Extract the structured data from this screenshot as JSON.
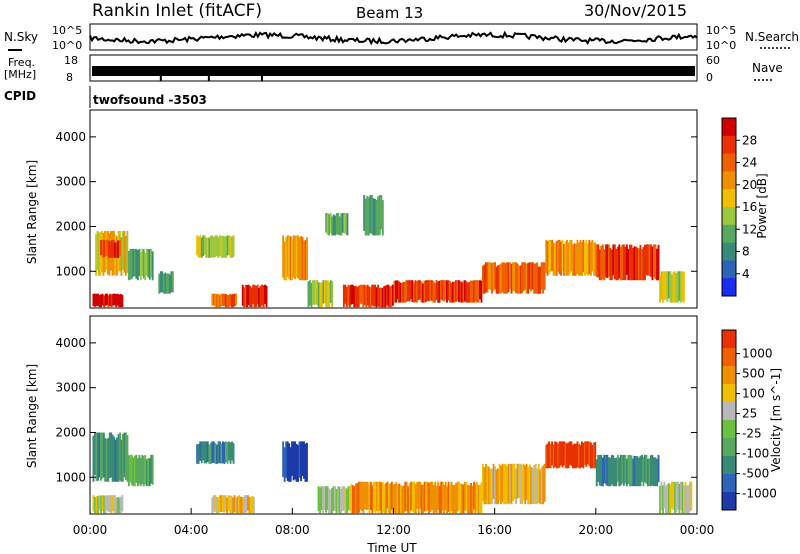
{
  "header": {
    "station": "Rankin Inlet (fitACF)",
    "beam": "Beam 13",
    "date": "30/Nov/2015"
  },
  "top_panels": {
    "nsky": {
      "label": "N.Sky",
      "tick_top": "10^5",
      "tick_bottom": "10^0"
    },
    "nsearch": {
      "label": "N.Search",
      "tick_top": "10^5",
      "tick_bottom": "10^0"
    },
    "freq": {
      "label_line1": "Freq.",
      "label_line2": "[MHz]",
      "tick_top": "18",
      "tick_bottom": "8"
    },
    "nave": {
      "label": "Nave",
      "tick_top": "60",
      "tick_bottom": "0"
    },
    "cpid": {
      "label": "CPID",
      "program": "twofsound -3503"
    }
  },
  "chart_data": [
    {
      "type": "heatmap",
      "name": "power-panel",
      "ylabel": "Slant Range [km]",
      "xlabel": "",
      "y_ticks": [
        1000,
        2000,
        3000,
        4000
      ],
      "ylim": [
        180,
        4600
      ],
      "colorbar": {
        "label": "Power [dB]",
        "ticks": [
          4,
          8,
          12,
          16,
          20,
          24,
          28
        ],
        "range": [
          0,
          32
        ],
        "colors": [
          "#1a2cf2",
          "#2e64b8",
          "#3a8a78",
          "#58a860",
          "#9cc840",
          "#f0c000",
          "#f09000",
          "#f06000",
          "#e83000",
          "#d00000"
        ]
      },
      "cells": [
        {
          "t0": 0.1,
          "t1": 1.3,
          "r0": 200,
          "r1": 500,
          "v": 29
        },
        {
          "t0": 0.2,
          "t1": 1.5,
          "r0": 900,
          "r1": 1900,
          "v": 18
        },
        {
          "t0": 0.4,
          "t1": 1.2,
          "r0": 1300,
          "r1": 1700,
          "v": 26
        },
        {
          "t0": 1.5,
          "t1": 2.5,
          "r0": 800,
          "r1": 1500,
          "v": 12
        },
        {
          "t0": 2.7,
          "t1": 3.3,
          "r0": 500,
          "r1": 1000,
          "v": 7
        },
        {
          "t0": 4.2,
          "t1": 5.7,
          "r0": 1300,
          "r1": 1800,
          "v": 14
        },
        {
          "t0": 4.8,
          "t1": 5.8,
          "r0": 200,
          "r1": 500,
          "v": 24
        },
        {
          "t0": 6.0,
          "t1": 7.0,
          "r0": 200,
          "r1": 700,
          "v": 26
        },
        {
          "t0": 7.6,
          "t1": 8.6,
          "r0": 800,
          "r1": 1800,
          "v": 22
        },
        {
          "t0": 8.6,
          "t1": 9.6,
          "r0": 200,
          "r1": 800,
          "v": 15
        },
        {
          "t0": 9.3,
          "t1": 10.2,
          "r0": 1800,
          "r1": 2300,
          "v": 12
        },
        {
          "t0": 10.0,
          "t1": 12.0,
          "r0": 200,
          "r1": 700,
          "v": 28
        },
        {
          "t0": 12.0,
          "t1": 15.5,
          "r0": 300,
          "r1": 800,
          "v": 26
        },
        {
          "t0": 15.5,
          "t1": 18.0,
          "r0": 500,
          "r1": 1200,
          "v": 25
        },
        {
          "t0": 18.0,
          "t1": 20.0,
          "r0": 900,
          "r1": 1700,
          "v": 22
        },
        {
          "t0": 20.0,
          "t1": 22.5,
          "r0": 800,
          "r1": 1600,
          "v": 26
        },
        {
          "t0": 22.5,
          "t1": 23.5,
          "r0": 300,
          "r1": 1000,
          "v": 14
        },
        {
          "t0": 10.8,
          "t1": 11.6,
          "r0": 1800,
          "r1": 2700,
          "v": 10
        }
      ]
    },
    {
      "type": "heatmap",
      "name": "velocity-panel",
      "ylabel": "Slant Range [km]",
      "xlabel": "Time UT",
      "x_ticks": [
        "00:00",
        "04:00",
        "08:00",
        "12:00",
        "16:00",
        "20:00",
        "00:00"
      ],
      "y_ticks": [
        1000,
        2000,
        3000,
        4000
      ],
      "ylim": [
        180,
        4600
      ],
      "colorbar": {
        "label": "Velocity [m s^-1]",
        "ticks": [
          "1000",
          "500",
          "100",
          "25",
          "-25",
          "-100",
          "-500",
          "-1000"
        ],
        "colors": [
          "#1c3aa8",
          "#2e64b8",
          "#3a8a78",
          "#58a860",
          "#6cc040",
          "#b8b8b8",
          "#f0c000",
          "#f09000",
          "#f06000",
          "#e83000"
        ]
      },
      "cells": [
        {
          "t0": 0.1,
          "t1": 1.5,
          "r0": 900,
          "r1": 2000,
          "v": 2
        },
        {
          "t0": 0.1,
          "t1": 1.3,
          "r0": 200,
          "r1": 600,
          "v": 5
        },
        {
          "t0": 1.5,
          "t1": 2.5,
          "r0": 800,
          "r1": 1500,
          "v": 3
        },
        {
          "t0": 4.2,
          "t1": 5.7,
          "r0": 1300,
          "r1": 1800,
          "v": 2
        },
        {
          "t0": 4.8,
          "t1": 6.5,
          "r0": 200,
          "r1": 600,
          "v": 6
        },
        {
          "t0": 7.6,
          "t1": 8.6,
          "r0": 900,
          "r1": 1800,
          "v": 0
        },
        {
          "t0": 9.0,
          "t1": 10.3,
          "r0": 200,
          "r1": 800,
          "v": 5
        },
        {
          "t0": 10.3,
          "t1": 15.5,
          "r0": 200,
          "r1": 900,
          "v": 7
        },
        {
          "t0": 15.5,
          "t1": 18.0,
          "r0": 400,
          "r1": 1300,
          "v": 6
        },
        {
          "t0": 18.0,
          "t1": 20.0,
          "r0": 1200,
          "r1": 1800,
          "v": 9
        },
        {
          "t0": 20.0,
          "t1": 22.5,
          "r0": 800,
          "r1": 1500,
          "v": 2
        },
        {
          "t0": 22.5,
          "t1": 23.8,
          "r0": 200,
          "r1": 900,
          "v": 5
        }
      ]
    }
  ]
}
